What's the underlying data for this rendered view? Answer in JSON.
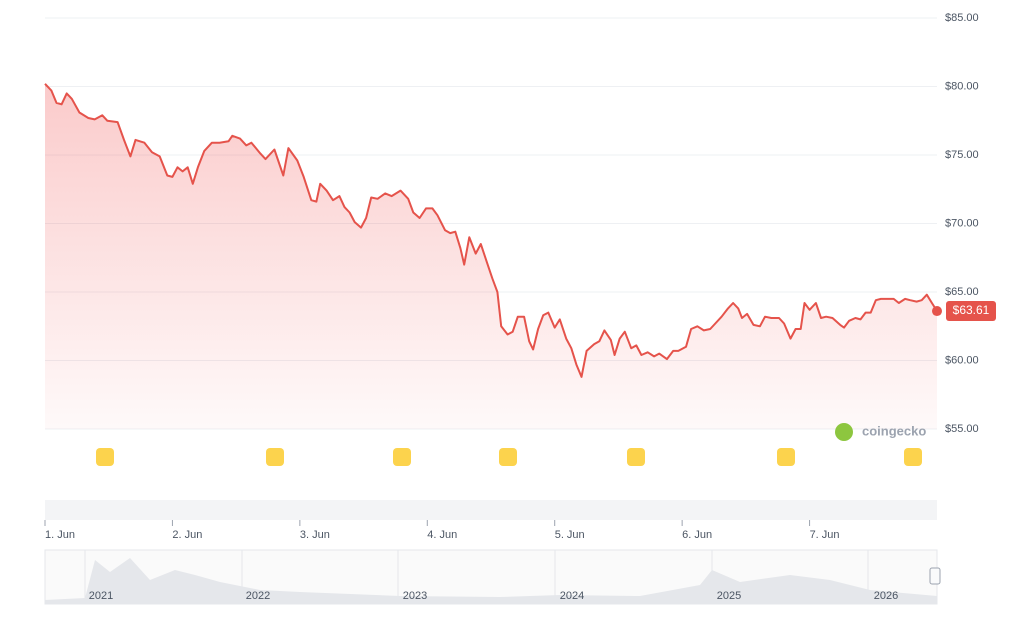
{
  "chart_data": {
    "type": "line",
    "color": "#e5534b",
    "x": [
      1.0,
      1.05,
      1.09,
      1.13,
      1.17,
      1.21,
      1.27,
      1.34,
      1.39,
      1.45,
      1.49,
      1.57,
      1.62,
      1.67,
      1.71,
      1.78,
      1.84,
      1.9,
      1.96,
      2.0,
      2.04,
      2.08,
      2.12,
      2.16,
      2.2,
      2.25,
      2.31,
      2.37,
      2.44,
      2.47,
      2.53,
      2.58,
      2.62,
      2.69,
      2.73,
      2.8,
      2.87,
      2.91,
      2.98,
      3.03,
      3.09,
      3.13,
      3.16,
      3.21,
      3.26,
      3.31,
      3.35,
      3.39,
      3.43,
      3.48,
      3.52,
      3.56,
      3.61,
      3.67,
      3.72,
      3.79,
      3.85,
      3.89,
      3.94,
      3.99,
      4.04,
      4.08,
      4.14,
      4.18,
      4.22,
      4.26,
      4.29,
      4.33,
      4.38,
      4.42,
      4.47,
      4.51,
      4.55,
      4.58,
      4.63,
      4.67,
      4.71,
      4.76,
      4.8,
      4.83,
      4.87,
      4.91,
      4.95,
      5.0,
      5.04,
      5.09,
      5.13,
      5.17,
      5.21,
      5.25,
      5.31,
      5.35,
      5.39,
      5.44,
      5.47,
      5.51,
      5.55,
      5.6,
      5.64,
      5.68,
      5.73,
      5.78,
      5.82,
      5.88,
      5.93,
      5.97,
      6.03,
      6.07,
      6.12,
      6.17,
      6.22,
      6.26,
      6.31,
      6.36,
      6.4,
      6.44,
      6.47,
      6.51,
      6.56,
      6.61,
      6.65,
      6.7,
      6.76,
      6.8,
      6.85,
      6.89,
      6.93,
      6.96,
      7.0,
      7.05,
      7.09,
      7.13,
      7.18,
      7.24,
      7.27,
      7.31,
      7.36,
      7.4,
      7.44,
      7.48,
      7.52,
      7.56,
      7.61,
      7.66,
      7.7,
      7.75,
      7.79,
      7.84,
      7.88,
      7.92,
      7.96,
      8.0
    ],
    "values": [
      80.2,
      79.7,
      78.8,
      78.7,
      79.5,
      79.1,
      78.1,
      77.7,
      77.6,
      77.9,
      77.5,
      77.4,
      76.1,
      74.9,
      76.1,
      75.9,
      75.2,
      74.9,
      73.5,
      73.4,
      74.1,
      73.8,
      74.1,
      72.9,
      74.1,
      75.3,
      75.9,
      75.9,
      76.0,
      76.4,
      76.2,
      75.7,
      75.9,
      75.1,
      74.7,
      75.4,
      73.5,
      75.5,
      74.6,
      73.4,
      71.7,
      71.6,
      72.9,
      72.4,
      71.7,
      72.0,
      71.2,
      70.8,
      70.1,
      69.7,
      70.4,
      71.9,
      71.8,
      72.2,
      72.0,
      72.4,
      71.8,
      70.8,
      70.4,
      71.1,
      71.1,
      70.6,
      69.5,
      69.3,
      69.4,
      68.2,
      67.0,
      69.0,
      67.8,
      68.5,
      67.1,
      66.0,
      65.0,
      62.5,
      61.9,
      62.1,
      63.2,
      63.2,
      61.4,
      60.8,
      62.3,
      63.3,
      63.5,
      62.4,
      63.0,
      61.6,
      60.9,
      59.7,
      58.8,
      60.7,
      61.2,
      61.4,
      62.2,
      61.5,
      60.4,
      61.6,
      62.1,
      60.9,
      61.1,
      60.4,
      60.6,
      60.3,
      60.5,
      60.1,
      60.7,
      60.7,
      61.0,
      62.3,
      62.5,
      62.2,
      62.3,
      62.7,
      63.2,
      63.8,
      64.2,
      63.8,
      63.1,
      63.4,
      62.6,
      62.5,
      63.2,
      63.1,
      63.1,
      62.7,
      61.6,
      62.3,
      62.3,
      64.2,
      63.7,
      64.2,
      63.1,
      63.2,
      63.1,
      62.6,
      62.4,
      62.9,
      63.1,
      63.0,
      63.5,
      63.5,
      64.4,
      64.5,
      64.5,
      64.5,
      64.2,
      64.5,
      64.4,
      64.3,
      64.4,
      64.8,
      64.2,
      63.61
    ],
    "last_value_label": "$63.61",
    "xlim": [
      1,
      8
    ],
    "xticks": [
      {
        "value": 1,
        "label": "1. Jun"
      },
      {
        "value": 2,
        "label": "2. Jun"
      },
      {
        "value": 3,
        "label": "3. Jun"
      },
      {
        "value": 4,
        "label": "4. Jun"
      },
      {
        "value": 5,
        "label": "5. Jun"
      },
      {
        "value": 6,
        "label": "6. Jun"
      },
      {
        "value": 7,
        "label": "7. Jun"
      }
    ],
    "ylim": [
      55,
      85
    ],
    "yticks": [
      {
        "value": 55,
        "label": "$55.00"
      },
      {
        "value": 60,
        "label": "$60.00"
      },
      {
        "value": 65,
        "label": "$65.00"
      },
      {
        "value": 70,
        "label": "$70.00"
      },
      {
        "value": 75,
        "label": "$75.00"
      },
      {
        "value": 80,
        "label": "$80.00"
      },
      {
        "value": 85,
        "label": "$85.00"
      }
    ],
    "grid": true,
    "watermark": "coingecko",
    "navigator_labels": [
      "2021",
      "2022",
      "2023",
      "2024",
      "2025",
      "2026"
    ]
  }
}
